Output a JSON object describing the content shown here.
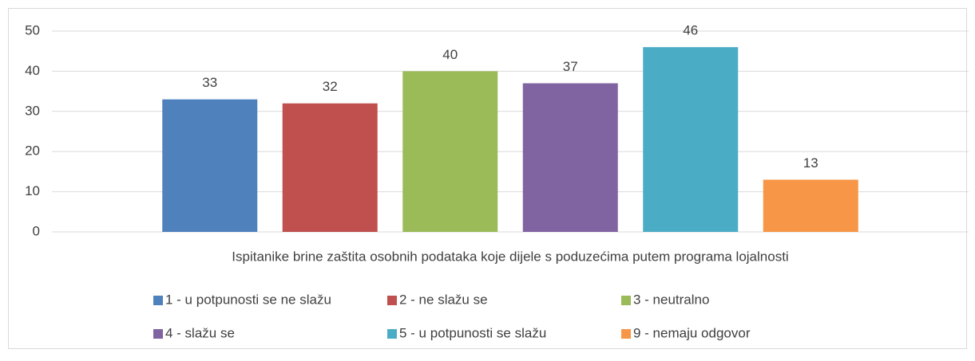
{
  "chart_data": {
    "type": "bar",
    "categories": [
      "Ispitanike brine zaštita osobnih podataka koje dijele s poduzećima putem programa lojalnosti"
    ],
    "series": [
      {
        "name": "1 - u potpunosti se ne slažu",
        "color": "#4f81bd",
        "values": [
          33
        ]
      },
      {
        "name": "2 - ne slažu se",
        "color": "#c0504d",
        "values": [
          32
        ]
      },
      {
        "name": "3 - neutralno",
        "color": "#9bbb59",
        "values": [
          40
        ]
      },
      {
        "name": "4 - slažu se",
        "color": "#8064a2",
        "values": [
          37
        ]
      },
      {
        "name": "5 - u potpunosti se slažu",
        "color": "#4bacc6",
        "values": [
          46
        ]
      },
      {
        "name": "9 - nemaju odgovor",
        "color": "#f79646",
        "values": [
          13
        ]
      }
    ],
    "ylim": [
      0,
      50
    ],
    "yticks": [
      0,
      10,
      20,
      30,
      40,
      50
    ],
    "grid": true,
    "legend": "bottom"
  }
}
